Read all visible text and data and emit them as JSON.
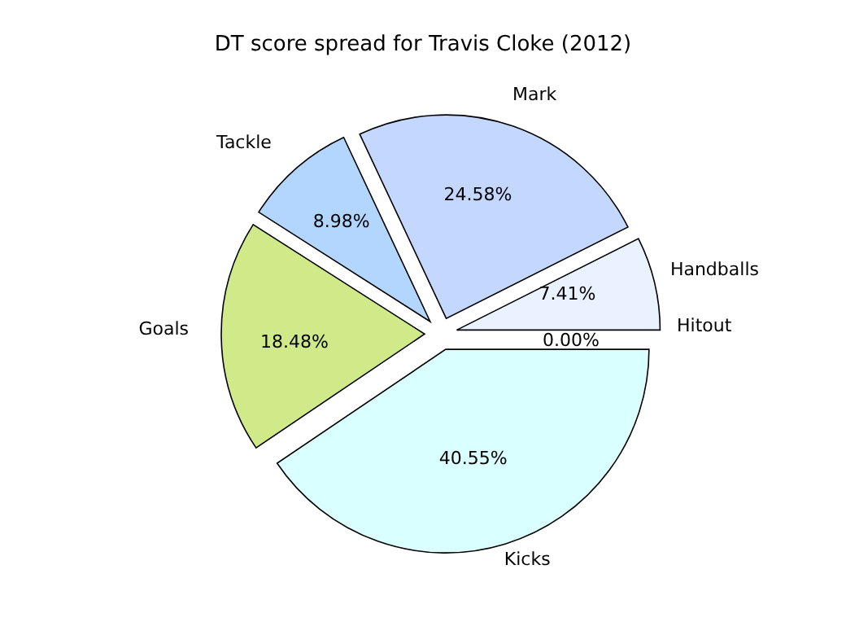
{
  "chart_data": {
    "type": "pie",
    "title": "DT score spread for Travis Cloke (2012)",
    "categories": [
      "Handballs",
      "Mark",
      "Tackle",
      "Goals",
      "Kicks",
      "Hitout"
    ],
    "values": [
      7.41,
      24.58,
      8.98,
      18.48,
      40.55,
      0.0
    ],
    "value_labels": [
      "7.41%",
      "24.58%",
      "8.98%",
      "18.48%",
      "40.55%",
      "0.00%"
    ],
    "colors": [
      "#eaf1ff",
      "#c4d8ff",
      "#b3d6ff",
      "#d0ea8a",
      "#d9ffff",
      "#ffffff"
    ],
    "legend": false
  }
}
